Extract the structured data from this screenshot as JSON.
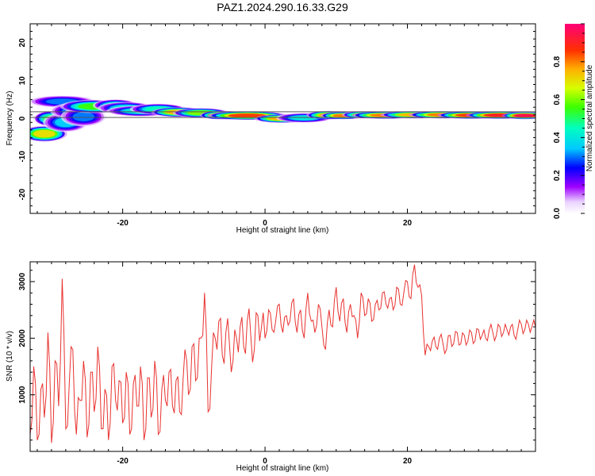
{
  "title": "PAZ1.2024.290.16.33.G29",
  "chart_data": [
    {
      "type": "heatmap",
      "xlabel": "Height of straight line (km)",
      "ylabel": "Frequency (Hz)",
      "xlim": [
        -33,
        38
      ],
      "ylim": [
        -25,
        25
      ],
      "xticks": [
        -20,
        0,
        20
      ],
      "yticks": [
        -20,
        -10,
        0,
        10,
        20
      ],
      "colorbar": {
        "label": "Normalized spectral amplitude",
        "range": [
          0,
          1
        ],
        "ticks": [
          "0.0",
          "0.2",
          "0.4",
          "0.6",
          "0.8"
        ],
        "tick_values": [
          0,
          0.2,
          0.4,
          0.6,
          0.8
        ]
      },
      "reference_band": [
        0.3,
        1.8
      ],
      "blobs": [
        {
          "x": -31,
          "y": -4,
          "rx": 2,
          "ry": 1.3,
          "v": 0.7
        },
        {
          "x": -30,
          "y": 0,
          "rx": 1.6,
          "ry": 1.3,
          "v": 0.5
        },
        {
          "x": -28,
          "y": -1,
          "rx": 2,
          "ry": 1.6,
          "v": 0.35
        },
        {
          "x": -28.5,
          "y": 4.5,
          "rx": 3,
          "ry": 1,
          "v": 0.3
        },
        {
          "x": -27,
          "y": 2,
          "rx": 2,
          "ry": 1.3,
          "v": 0.3
        },
        {
          "x": -25.5,
          "y": 0.5,
          "rx": 2,
          "ry": 1.6,
          "v": 0.3
        },
        {
          "x": -24,
          "y": 3.2,
          "rx": 3,
          "ry": 1.1,
          "v": 0.55
        },
        {
          "x": -21,
          "y": 3.5,
          "rx": 2,
          "ry": 1,
          "v": 0.45
        },
        {
          "x": -19.5,
          "y": 2.8,
          "rx": 2.5,
          "ry": 1,
          "v": 0.4
        },
        {
          "x": -17.5,
          "y": 2,
          "rx": 3,
          "ry": 0.9,
          "v": 0.4
        },
        {
          "x": -15,
          "y": 2.5,
          "rx": 2.5,
          "ry": 0.9,
          "v": 0.45
        },
        {
          "x": -12,
          "y": 1.7,
          "rx": 2.5,
          "ry": 0.8,
          "v": 0.75
        },
        {
          "x": -9,
          "y": 1.5,
          "rx": 2.5,
          "ry": 0.8,
          "v": 0.6
        },
        {
          "x": -6,
          "y": 0.9,
          "rx": 2,
          "ry": 0.7,
          "v": 0.8
        },
        {
          "x": -2.5,
          "y": 0.8,
          "rx": 3.5,
          "ry": 0.7,
          "v": 0.85
        },
        {
          "x": 2.5,
          "y": 0,
          "rx": 2.5,
          "ry": 0.7,
          "v": 0.75
        },
        {
          "x": 5.5,
          "y": 0.2,
          "rx": 2.5,
          "ry": 0.8,
          "v": 0.4
        },
        {
          "x": 9,
          "y": 0.9,
          "rx": 2,
          "ry": 0.7,
          "v": 0.75
        },
        {
          "x": 11,
          "y": 0.8,
          "rx": 2,
          "ry": 0.6,
          "v": 0.8
        },
        {
          "x": 14,
          "y": 1,
          "rx": 2,
          "ry": 0.6,
          "v": 0.7
        },
        {
          "x": 17,
          "y": 0.9,
          "rx": 3,
          "ry": 0.6,
          "v": 0.8
        },
        {
          "x": 21,
          "y": 1,
          "rx": 3,
          "ry": 0.6,
          "v": 0.75
        },
        {
          "x": 25,
          "y": 1,
          "rx": 3,
          "ry": 0.6,
          "v": 0.8
        },
        {
          "x": 29,
          "y": 0.9,
          "rx": 3,
          "ry": 0.6,
          "v": 0.85
        },
        {
          "x": 33,
          "y": 0.9,
          "rx": 3,
          "ry": 0.6,
          "v": 0.9
        },
        {
          "x": 36.5,
          "y": 0.8,
          "rx": 2,
          "ry": 0.6,
          "v": 0.95
        }
      ]
    },
    {
      "type": "line",
      "xlabel": "Height of straight line (km)",
      "ylabel": "SNR (10 * v/v)",
      "xlim": [
        -33,
        38
      ],
      "ylim": [
        0,
        3350
      ],
      "xticks": [
        -20,
        0,
        20
      ],
      "yticks": [
        1000,
        2000,
        3000
      ],
      "color": "#e8322f",
      "series": [
        {
          "x": [
            -33,
            -32.5,
            -32,
            -31.5,
            -31,
            -30.5,
            -30,
            -29.5,
            -29,
            -28.5,
            -28,
            -27.5,
            -27,
            -26.5,
            -26,
            -25.5,
            -25,
            -24.5,
            -24,
            -23.5,
            -23,
            -22.5,
            -22,
            -21.5,
            -21,
            -20.5,
            -20,
            -19.5,
            -19,
            -18.5,
            -18,
            -17.5,
            -17,
            -16.5,
            -16,
            -15.5,
            -15,
            -14.5,
            -14,
            -13.5,
            -13,
            -12.5,
            -12,
            -11.5,
            -11,
            -10.5,
            -10,
            -9.5,
            -9,
            -8.5,
            -8,
            -7.5,
            -7,
            -6.5,
            -6,
            -5.5,
            -5,
            -4.5,
            -4,
            -3.5,
            -3,
            -2.5,
            -2,
            -1.5,
            -1,
            -0.5,
            0,
            0.5,
            1,
            1.5,
            2,
            2.5,
            3,
            3.5,
            4,
            4.5,
            5,
            5.5,
            6,
            6.5,
            7,
            7.5,
            8,
            8.5,
            9,
            9.5,
            10,
            10.5,
            11,
            11.5,
            12,
            12.5,
            13,
            13.5,
            14,
            14.5,
            15,
            15.5,
            16,
            16.5,
            17,
            17.5,
            18,
            18.5,
            19,
            19.5,
            20,
            20.5,
            21,
            21.5,
            22,
            22.5,
            23,
            23.5,
            24,
            24.5,
            25,
            25.5,
            26,
            26.5,
            27,
            27.5,
            28,
            28.5,
            29,
            29.5,
            30,
            30.5,
            31,
            31.5,
            32,
            32.5,
            33,
            33.5,
            34,
            34.5,
            35,
            35.5,
            36,
            36.5,
            37,
            37.5,
            38
          ],
          "y": [
            300,
            1500,
            200,
            1100,
            600,
            2100,
            150,
            1600,
            800,
            3050,
            400,
            1200,
            1800,
            300,
            900,
            1600,
            250,
            1400,
            700,
            1850,
            400,
            1100,
            200,
            1500,
            900,
            1250,
            500,
            1400,
            300,
            1200,
            800,
            1500,
            200,
            1300,
            600,
            1600,
            300,
            1100,
            900,
            1400,
            800,
            1250,
            700,
            1300,
            1600,
            1100,
            1900,
            1300,
            2000,
            2800,
            700,
            1500,
            2000,
            2300,
            1700,
            2100,
            1900,
            1600,
            2000,
            2200,
            1850,
            2300,
            2050,
            1800,
            2400,
            2200,
            2000,
            2500,
            2150,
            2300,
            2600,
            2100,
            2400,
            2300,
            2700,
            2100,
            2500,
            2000,
            2800,
            2300,
            2100,
            2600,
            2200,
            1800,
            2500,
            2200,
            2900,
            2300,
            2700,
            2100,
            2600,
            2400,
            2000,
            2800,
            2400,
            2700,
            2300,
            2600,
            2500,
            2800,
            2600,
            2700,
            2500,
            2900,
            2600,
            2800,
            3000,
            2700,
            3300,
            2900,
            2750,
            1700,
            1850,
            1950,
            1850,
            2000,
            1900,
            1800,
            2050,
            1900,
            2100,
            1900,
            2050,
            1950,
            2100,
            1950,
            2150,
            2050,
            2000,
            2150,
            2100,
            2050,
            2200,
            2100,
            2150,
            2200,
            2050,
            2150,
            2250,
            2150,
            2250,
            2200,
            2200
          ]
        }
      ]
    }
  ]
}
